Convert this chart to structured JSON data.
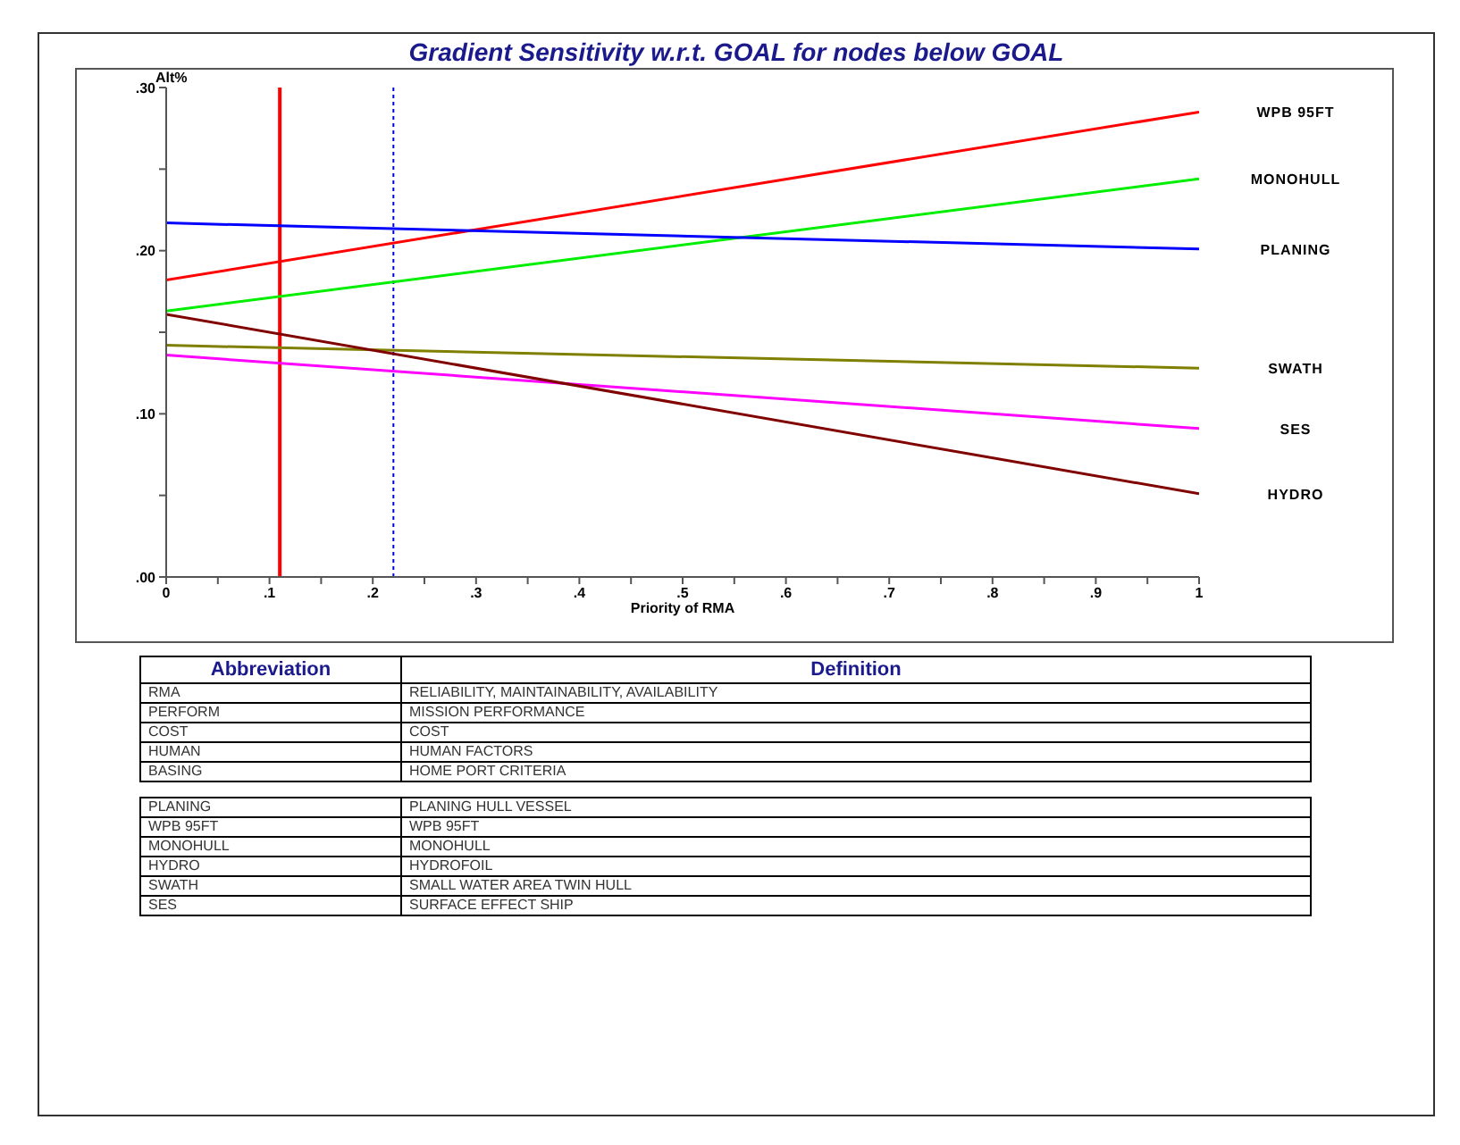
{
  "chart_data": {
    "type": "line",
    "title": "Gradient Sensitivity w.r.t. GOAL for nodes below GOAL",
    "xlabel": "Priority of RMA",
    "ylabel": "Alt%",
    "x": [
      0,
      1
    ],
    "series": [
      {
        "name": "WPB 95FT",
        "color": "#ff0000",
        "values": [
          0.182,
          0.285
        ]
      },
      {
        "name": "MONOHULL",
        "color": "#00ee00",
        "values": [
          0.163,
          0.244
        ]
      },
      {
        "name": "PLANING",
        "color": "#0000ff",
        "values": [
          0.217,
          0.201
        ]
      },
      {
        "name": "SWATH",
        "color": "#808000",
        "values": [
          0.142,
          0.128
        ]
      },
      {
        "name": "SES",
        "color": "#ff00ff",
        "values": [
          0.136,
          0.091
        ]
      },
      {
        "name": "HYDRO",
        "color": "#800000",
        "values": [
          0.161,
          0.051
        ]
      }
    ],
    "xlim": [
      0,
      1
    ],
    "xticks": [
      {
        "value": 0,
        "label": "0"
      },
      {
        "value": 0.05,
        "label": null
      },
      {
        "value": 0.1,
        "label": ".1"
      },
      {
        "value": 0.15,
        "label": null
      },
      {
        "value": 0.2,
        "label": ".2"
      },
      {
        "value": 0.25,
        "label": null
      },
      {
        "value": 0.3,
        "label": ".3"
      },
      {
        "value": 0.35,
        "label": null
      },
      {
        "value": 0.4,
        "label": ".4"
      },
      {
        "value": 0.45,
        "label": null
      },
      {
        "value": 0.5,
        "label": ".5"
      },
      {
        "value": 0.55,
        "label": null
      },
      {
        "value": 0.6,
        "label": ".6"
      },
      {
        "value": 0.65,
        "label": null
      },
      {
        "value": 0.7,
        "label": ".7"
      },
      {
        "value": 0.75,
        "label": null
      },
      {
        "value": 0.8,
        "label": ".8"
      },
      {
        "value": 0.85,
        "label": null
      },
      {
        "value": 0.9,
        "label": ".9"
      },
      {
        "value": 0.95,
        "label": null
      },
      {
        "value": 1,
        "label": "1"
      }
    ],
    "ylim": [
      0,
      0.3
    ],
    "yticks": [
      {
        "value": 0,
        "label": ".00"
      },
      {
        "value": 0.05,
        "label": null
      },
      {
        "value": 0.1,
        "label": ".10"
      },
      {
        "value": 0.15,
        "label": null
      },
      {
        "value": 0.2,
        "label": ".20"
      },
      {
        "value": 0.25,
        "label": null
      },
      {
        "value": 0.3,
        "label": ".30"
      }
    ],
    "ref_lines": [
      {
        "axis": "x",
        "value": 0.11,
        "color": "#ff0000",
        "line_style": "solid"
      },
      {
        "axis": "x",
        "value": 0.22,
        "color": "#0000ff",
        "line_style": "dotted"
      }
    ],
    "grid": false,
    "legend": false,
    "marker": "none",
    "line_style": "solid",
    "annotations": [
      "Abbreviation",
      "Definition",
      "RMA",
      "RELIABILITY, MAINTAINABILITY, AVAILABILITY",
      "PERFORM",
      "MISSION PERFORMANCE",
      "COST",
      "COST",
      "HUMAN",
      "HUMAN FACTORS",
      "BASING",
      "HOME PORT CRITERIA",
      "PLANING",
      "PLANING HULL VESSEL",
      "WPB 95FT",
      "WPB 95FT",
      "MONOHULL",
      "MONOHULL",
      "HYDRO",
      "HYDROFOIL",
      "SWATH",
      "SMALL WATER AREA TWIN HULL",
      "SES",
      "SURFACE EFFECT SHIP"
    ]
  }
}
